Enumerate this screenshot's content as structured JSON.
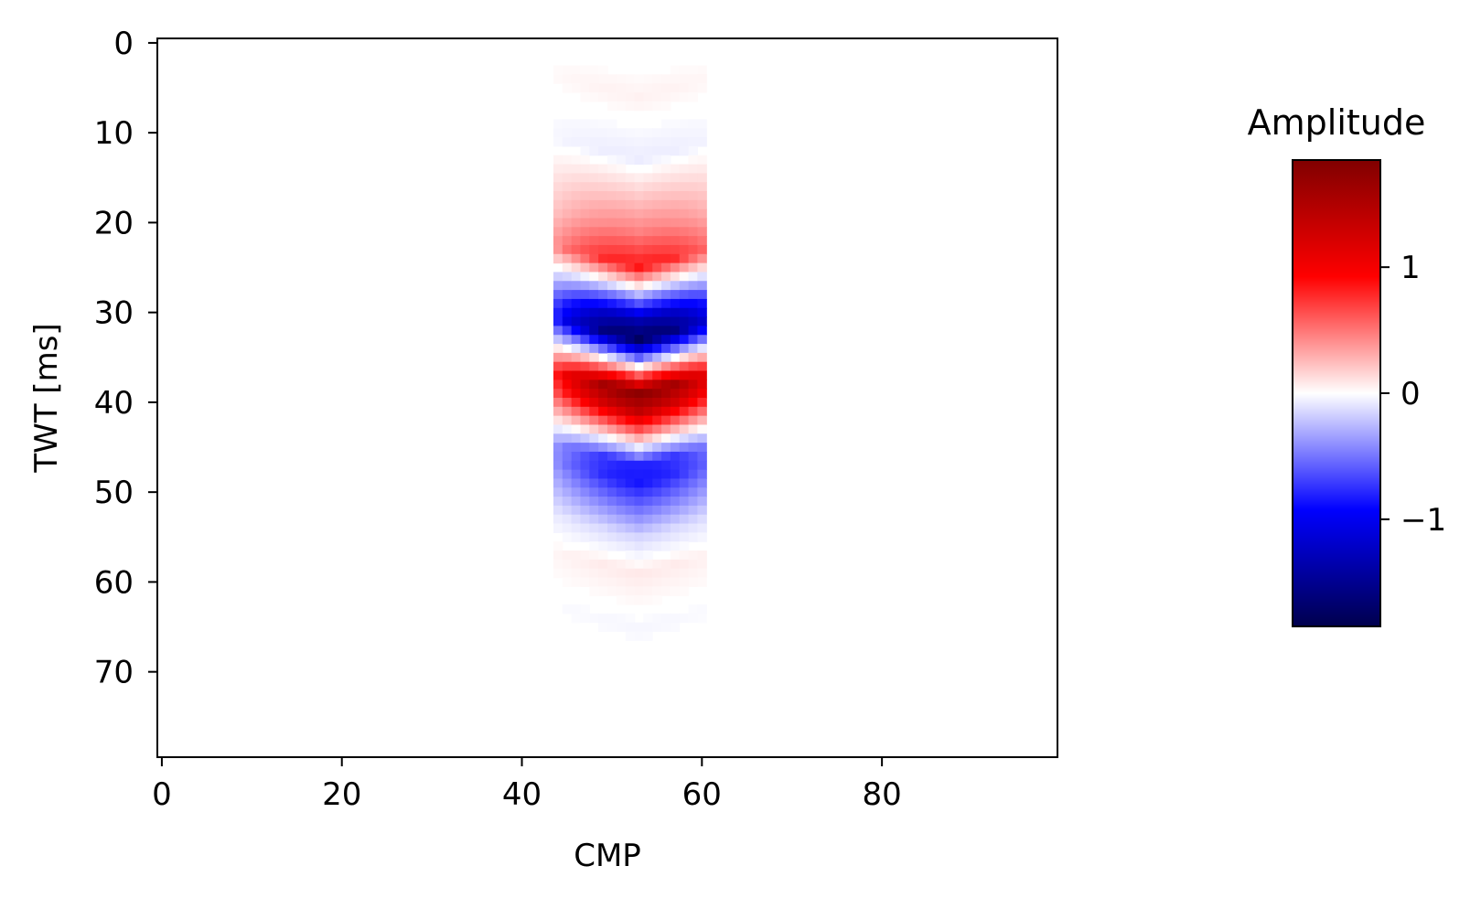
{
  "chart_data": {
    "type": "heatmap",
    "title": "",
    "xlabel": "CMP",
    "ylabel": "TWT [ms]",
    "xlim": [
      -0.5,
      99.5
    ],
    "ylim": [
      79.5,
      -0.5
    ],
    "x_ticks": [
      0,
      20,
      40,
      60,
      80
    ],
    "x_tick_labels": [
      "0",
      "20",
      "40",
      "60",
      "80"
    ],
    "y_ticks": [
      0,
      10,
      20,
      30,
      40,
      50,
      60,
      70
    ],
    "y_tick_labels": [
      "0",
      "10",
      "20",
      "30",
      "40",
      "50",
      "60",
      "70"
    ],
    "grid": false,
    "colormap": "seismic",
    "cmap_colors": [
      "#00004d",
      "#0000ff",
      "#ffffff",
      "#ff0000",
      "#800000"
    ],
    "colorbar": {
      "title": "Amplitude",
      "vmin": -1.85,
      "vmax": 1.85,
      "ticks": [
        1,
        0,
        -1
      ],
      "tick_labels": [
        "1",
        "0",
        "−1"
      ]
    },
    "anomaly": {
      "cmp_range": [
        44,
        60
      ],
      "cmp_center": 53,
      "twt_center_ms": 36,
      "time_samples_ms": [
        5,
        10,
        12,
        20,
        24,
        30,
        32,
        38,
        40,
        46,
        48,
        54,
        58,
        64
      ],
      "amplitudes": [
        0.05,
        -0.04,
        -0.07,
        0.45,
        0.85,
        -1.35,
        -1.75,
        1.75,
        1.4,
        -0.8,
        -0.85,
        -0.15,
        0.08,
        -0.03
      ]
    }
  }
}
